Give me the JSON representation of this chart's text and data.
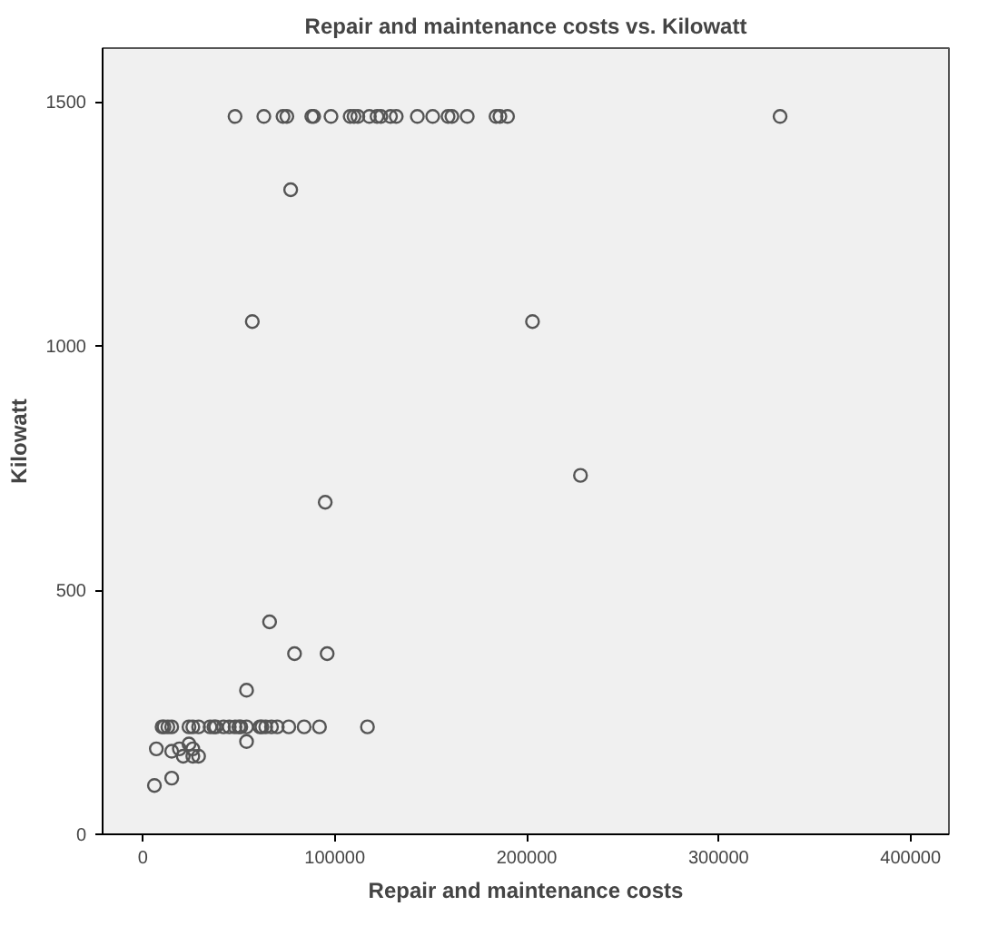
{
  "chart_data": {
    "type": "scatter",
    "title": "Repair and maintenance costs vs. Kilowatt",
    "xlabel": "Repair and maintenance costs",
    "ylabel": "Kilowatt",
    "xlim": [
      -21000,
      420000
    ],
    "ylim": [
      0,
      1610
    ],
    "xticks": [
      0,
      100000,
      200000,
      300000,
      400000
    ],
    "yticks": [
      0,
      500,
      1000,
      1500
    ],
    "grid": false,
    "marker": "circle",
    "series": [
      {
        "color": "#555555",
        "x": [
          48000,
          63000,
          73000,
          75000,
          88000,
          89000,
          98000,
          108000,
          110000,
          112000,
          118000,
          122000,
          124000,
          129000,
          132000,
          143000,
          151000,
          159000,
          161000,
          169000,
          184000,
          186000,
          190000,
          332000,
          77000,
          57000,
          203000,
          228000,
          95000,
          66000,
          79000,
          96000,
          54000,
          10000,
          11000,
          13000,
          15000,
          24000,
          26000,
          29000,
          35000,
          37000,
          38000,
          42000,
          45000,
          48000,
          50000,
          51000,
          54000,
          61000,
          62000,
          64000,
          67000,
          70000,
          76000,
          84000,
          92000,
          117000,
          54000,
          7000,
          15000,
          19000,
          24000,
          26000,
          21000,
          26000,
          29000,
          6000,
          15000
        ],
        "values": [
          1470,
          1470,
          1470,
          1470,
          1470,
          1470,
          1470,
          1470,
          1470,
          1470,
          1470,
          1470,
          1470,
          1470,
          1470,
          1470,
          1470,
          1470,
          1470,
          1470,
          1470,
          1470,
          1470,
          1470,
          1320,
          1050,
          1050,
          735,
          680,
          435,
          370,
          370,
          295,
          220,
          220,
          220,
          220,
          220,
          220,
          220,
          220,
          220,
          220,
          220,
          220,
          220,
          220,
          220,
          220,
          220,
          220,
          220,
          220,
          220,
          220,
          220,
          220,
          220,
          190,
          175,
          170,
          175,
          185,
          175,
          160,
          160,
          160,
          100,
          115
        ]
      }
    ]
  }
}
